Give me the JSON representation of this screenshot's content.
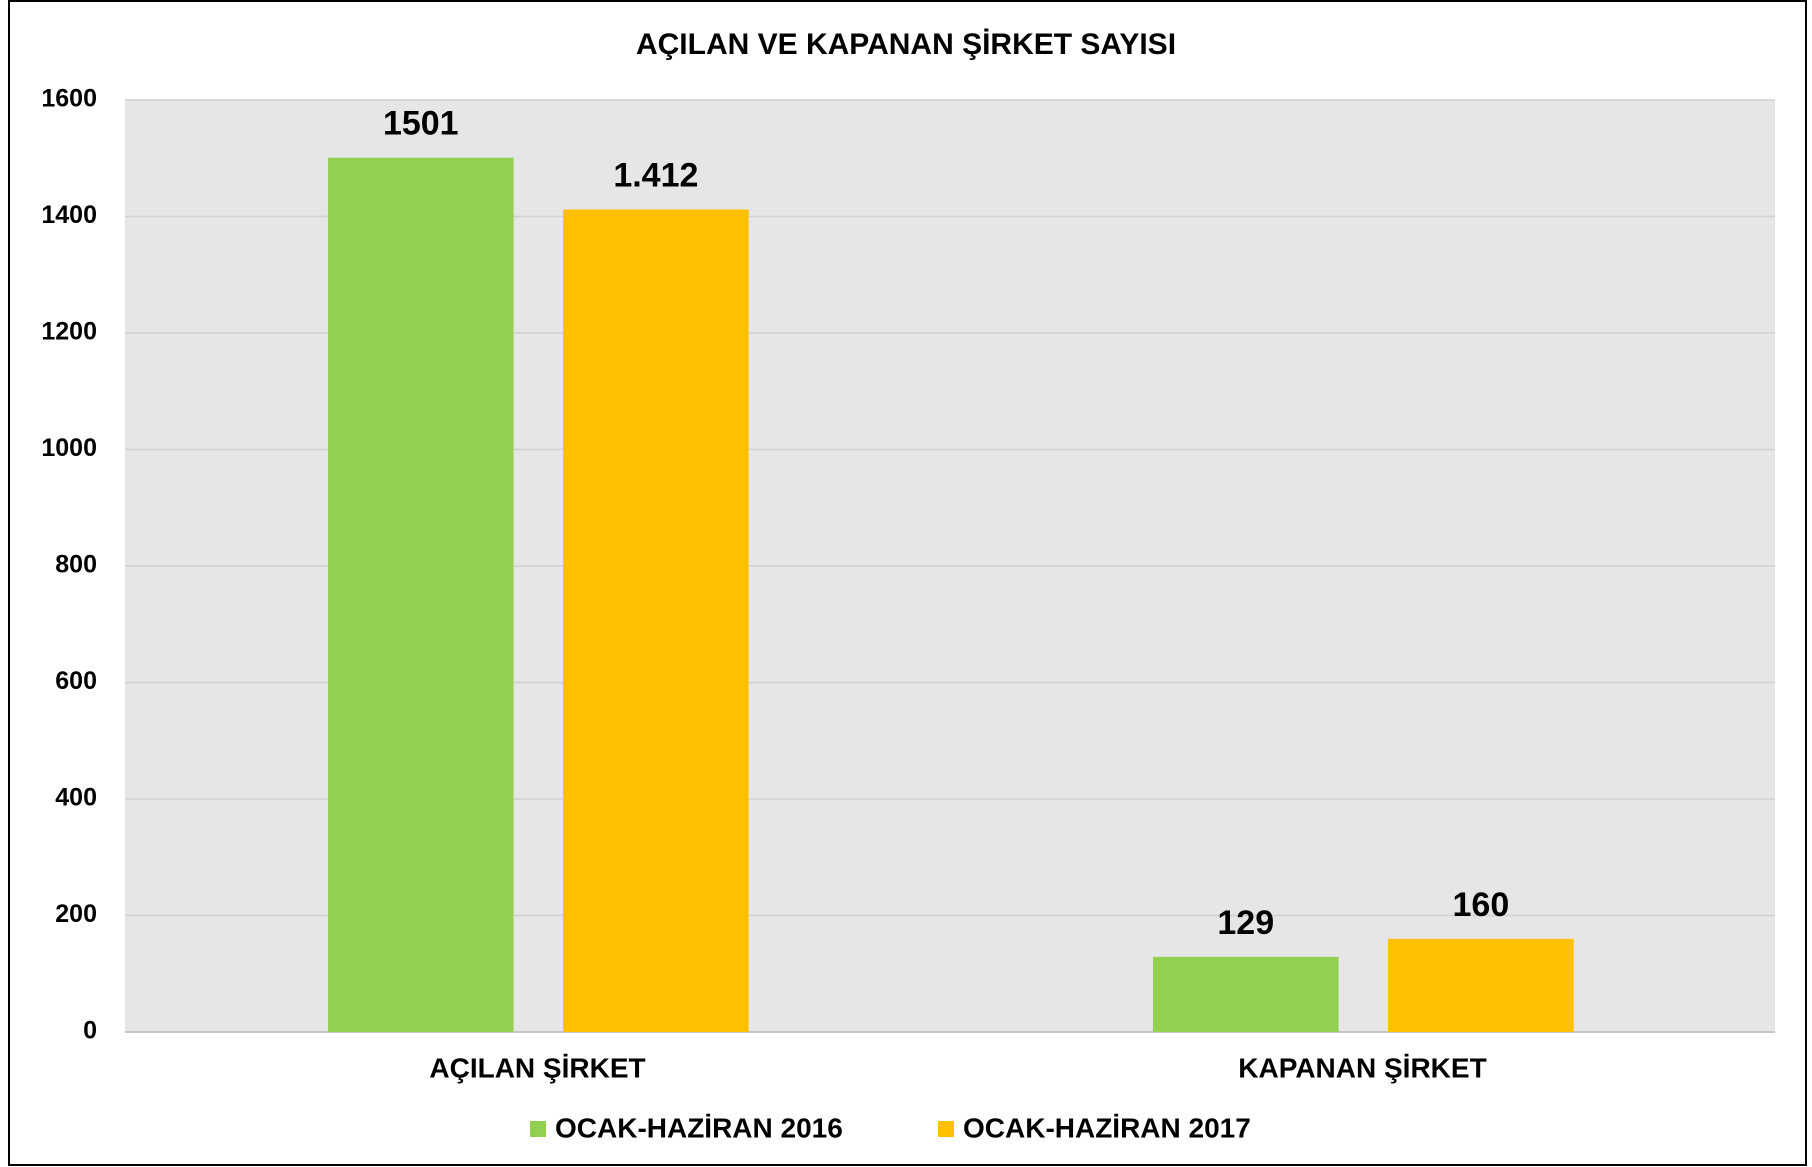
{
  "chart_data": {
    "type": "bar",
    "title": "AÇILAN VE KAPANAN ŞİRKET SAYISI",
    "categories": [
      "AÇILAN ŞİRKET",
      "KAPANAN ŞİRKET"
    ],
    "series": [
      {
        "name": "OCAK-HAZİRAN 2016",
        "color": "#92d050",
        "values": [
          1501,
          129
        ]
      },
      {
        "name": "OCAK-HAZİRAN 2017",
        "color": "#ffc000",
        "values": [
          1412,
          160
        ],
        "value_labels": [
          "1.412",
          "160"
        ]
      }
    ],
    "ylim": [
      0,
      1600
    ],
    "yticks": [
      0,
      200,
      400,
      600,
      800,
      1000,
      1200,
      1400,
      1600
    ],
    "grid": true,
    "legend": "bottom"
  }
}
